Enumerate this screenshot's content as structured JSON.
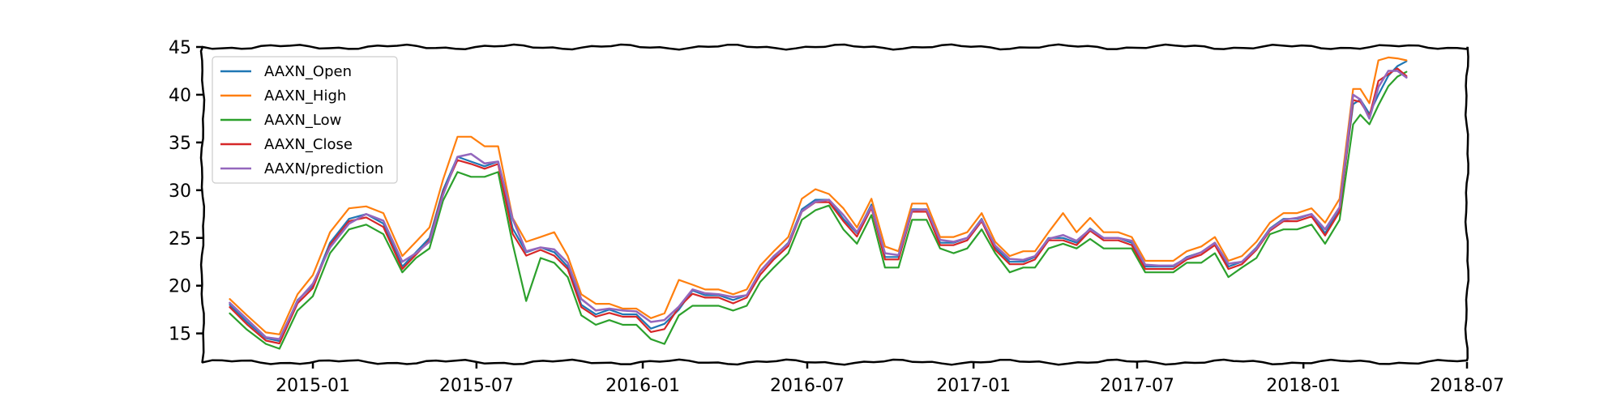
{
  "chart_data": {
    "type": "line",
    "title": "",
    "xlabel": "",
    "ylabel": "",
    "xlim": [
      "2014-09-01",
      "2018-07-01"
    ],
    "ylim": [
      12,
      45
    ],
    "x_ticks": [
      "2015-01",
      "2015-07",
      "2016-01",
      "2016-07",
      "2017-01",
      "2017-07",
      "2018-01",
      "2018-07"
    ],
    "y_ticks": [
      15,
      20,
      25,
      30,
      35,
      40,
      45
    ],
    "grid": false,
    "legend_position": "top-left",
    "dates": [
      "2014-10-01",
      "2014-10-20",
      "2014-11-10",
      "2014-11-25",
      "2014-12-15",
      "2015-01-01",
      "2015-01-20",
      "2015-02-10",
      "2015-03-01",
      "2015-03-20",
      "2015-04-10",
      "2015-04-25",
      "2015-05-10",
      "2015-05-25",
      "2015-06-10",
      "2015-06-25",
      "2015-07-10",
      "2015-07-25",
      "2015-08-10",
      "2015-08-25",
      "2015-09-10",
      "2015-09-25",
      "2015-10-10",
      "2015-10-25",
      "2015-11-10",
      "2015-11-25",
      "2015-12-10",
      "2015-12-25",
      "2016-01-10",
      "2016-01-25",
      "2016-02-10",
      "2016-02-25",
      "2016-03-10",
      "2016-03-25",
      "2016-04-10",
      "2016-04-25",
      "2016-05-10",
      "2016-05-25",
      "2016-06-10",
      "2016-06-25",
      "2016-07-10",
      "2016-07-25",
      "2016-08-10",
      "2016-08-25",
      "2016-09-10",
      "2016-09-25",
      "2016-10-10",
      "2016-10-25",
      "2016-11-10",
      "2016-11-25",
      "2016-12-10",
      "2016-12-25",
      "2017-01-10",
      "2017-01-25",
      "2017-02-10",
      "2017-02-25",
      "2017-03-10",
      "2017-03-25",
      "2017-04-10",
      "2017-04-25",
      "2017-05-10",
      "2017-05-25",
      "2017-06-10",
      "2017-06-25",
      "2017-07-10",
      "2017-07-25",
      "2017-08-10",
      "2017-08-25",
      "2017-09-10",
      "2017-09-25",
      "2017-10-10",
      "2017-10-25",
      "2017-11-10",
      "2017-11-25",
      "2017-12-10",
      "2017-12-25",
      "2018-01-10",
      "2018-01-25",
      "2018-02-10",
      "2018-02-25",
      "2018-03-05",
      "2018-03-15",
      "2018-03-25",
      "2018-04-05",
      "2018-04-15",
      "2018-04-25"
    ],
    "series": [
      {
        "name": "AAXN_Open",
        "color": "#1f77b4",
        "values": [
          18.0,
          16.2,
          14.5,
          14.2,
          18.5,
          20.0,
          24.5,
          27.0,
          27.5,
          26.5,
          22.0,
          23.5,
          25.0,
          30.0,
          33.5,
          33.0,
          32.5,
          33.0,
          26.0,
          23.5,
          24.0,
          23.5,
          22.0,
          18.0,
          17.0,
          17.5,
          17.0,
          17.0,
          15.5,
          16.0,
          17.5,
          19.5,
          19.0,
          19.0,
          18.5,
          19.0,
          21.5,
          23.0,
          24.5,
          28.0,
          29.0,
          29.0,
          27.0,
          25.5,
          28.5,
          23.0,
          23.0,
          28.0,
          28.0,
          24.5,
          24.5,
          25.0,
          27.0,
          24.0,
          22.5,
          22.5,
          23.0,
          25.0,
          25.0,
          24.5,
          26.0,
          25.0,
          25.0,
          24.5,
          22.0,
          22.0,
          22.0,
          23.0,
          23.5,
          24.5,
          22.0,
          22.5,
          24.0,
          26.0,
          27.0,
          27.0,
          27.5,
          25.5,
          28.0,
          39.0,
          39.5,
          38.0,
          40.0,
          42.0,
          43.0,
          43.5
        ]
      },
      {
        "name": "AAXN_High",
        "color": "#ff7f0e",
        "values": [
          18.5,
          16.8,
          15.0,
          14.8,
          19.0,
          21.0,
          25.5,
          28.0,
          28.2,
          27.5,
          23.0,
          24.5,
          26.0,
          31.0,
          35.5,
          35.5,
          34.5,
          34.5,
          27.0,
          24.5,
          25.0,
          25.5,
          23.0,
          19.0,
          18.0,
          18.0,
          17.5,
          17.5,
          16.5,
          17.0,
          20.5,
          20.0,
          19.5,
          19.5,
          19.0,
          19.5,
          22.0,
          23.5,
          25.0,
          29.0,
          30.0,
          29.5,
          28.0,
          26.0,
          29.0,
          24.0,
          23.5,
          28.5,
          28.5,
          25.0,
          25.0,
          25.5,
          27.5,
          24.5,
          23.0,
          23.5,
          23.5,
          25.5,
          27.5,
          25.5,
          27.0,
          25.5,
          25.5,
          25.0,
          22.5,
          22.5,
          22.5,
          23.5,
          24.0,
          25.0,
          22.5,
          23.0,
          24.5,
          26.5,
          27.5,
          27.5,
          28.0,
          26.5,
          29.0,
          40.5,
          40.5,
          39.0,
          43.5,
          43.8,
          43.7,
          43.5
        ]
      },
      {
        "name": "AAXN_Low",
        "color": "#2ca02c",
        "values": [
          17.2,
          15.5,
          14.0,
          13.5,
          17.5,
          19.0,
          23.5,
          26.0,
          26.5,
          25.5,
          21.5,
          23.0,
          24.0,
          29.0,
          32.0,
          31.5,
          31.5,
          32.0,
          24.5,
          18.5,
          23.0,
          22.5,
          21.0,
          17.0,
          16.0,
          16.5,
          16.0,
          16.0,
          14.5,
          14.0,
          17.0,
          18.0,
          18.0,
          18.0,
          17.5,
          18.0,
          20.5,
          22.0,
          23.5,
          27.0,
          28.0,
          28.5,
          26.0,
          24.5,
          27.5,
          22.0,
          22.0,
          27.0,
          27.0,
          24.0,
          23.5,
          24.0,
          26.0,
          23.5,
          21.5,
          22.0,
          22.0,
          24.0,
          24.5,
          24.0,
          25.0,
          24.0,
          24.0,
          24.0,
          21.5,
          21.5,
          21.5,
          22.5,
          22.5,
          23.5,
          21.0,
          22.0,
          23.0,
          25.5,
          26.0,
          26.0,
          26.5,
          24.5,
          27.0,
          37.0,
          38.0,
          37.0,
          39.0,
          41.0,
          42.0,
          42.5
        ]
      },
      {
        "name": "AAXN_Close",
        "color": "#d62728",
        "values": [
          17.8,
          16.0,
          14.3,
          14.0,
          18.2,
          19.8,
          24.3,
          26.8,
          27.2,
          26.2,
          21.8,
          23.3,
          24.8,
          29.8,
          33.2,
          32.8,
          32.3,
          32.8,
          25.5,
          23.2,
          23.8,
          23.2,
          21.8,
          17.8,
          16.8,
          17.2,
          16.8,
          16.8,
          15.2,
          15.5,
          17.8,
          19.2,
          18.8,
          18.8,
          18.2,
          18.8,
          21.2,
          22.8,
          24.2,
          27.8,
          28.8,
          28.8,
          26.8,
          25.2,
          28.2,
          22.8,
          22.8,
          27.8,
          27.8,
          24.3,
          24.3,
          24.8,
          26.8,
          23.8,
          22.3,
          22.3,
          22.8,
          24.8,
          24.8,
          24.3,
          25.8,
          24.8,
          24.8,
          24.3,
          21.8,
          21.8,
          21.8,
          22.8,
          23.3,
          24.3,
          21.8,
          22.3,
          23.8,
          25.8,
          26.8,
          26.8,
          27.3,
          25.3,
          27.8,
          39.5,
          39.3,
          37.8,
          41.5,
          42.2,
          42.8,
          42.0
        ]
      },
      {
        "name": "AAXN/prediction",
        "color": "#9467bd",
        "values": [
          18.2,
          16.5,
          14.6,
          14.4,
          18.4,
          20.2,
          24.0,
          26.5,
          27.5,
          26.8,
          22.5,
          23.4,
          24.6,
          29.5,
          33.5,
          33.8,
          32.8,
          33.0,
          27.0,
          23.6,
          24.0,
          23.8,
          22.4,
          18.6,
          17.4,
          17.6,
          17.4,
          17.3,
          16.2,
          16.4,
          17.8,
          19.6,
          19.2,
          19.1,
          18.8,
          19.0,
          21.5,
          23.1,
          24.4,
          27.8,
          28.8,
          29.0,
          27.4,
          25.6,
          28.3,
          23.4,
          23.2,
          27.9,
          28.0,
          24.8,
          24.6,
          25.0,
          26.9,
          24.2,
          22.8,
          22.7,
          23.1,
          24.9,
          25.3,
          24.7,
          25.9,
          25.0,
          25.0,
          24.7,
          22.2,
          22.1,
          22.1,
          22.9,
          23.5,
          24.5,
          22.3,
          22.5,
          23.9,
          25.9,
          26.9,
          27.1,
          27.5,
          25.9,
          28.2,
          40.0,
          39.5,
          37.5,
          40.8,
          42.5,
          42.5,
          41.8
        ]
      }
    ]
  }
}
